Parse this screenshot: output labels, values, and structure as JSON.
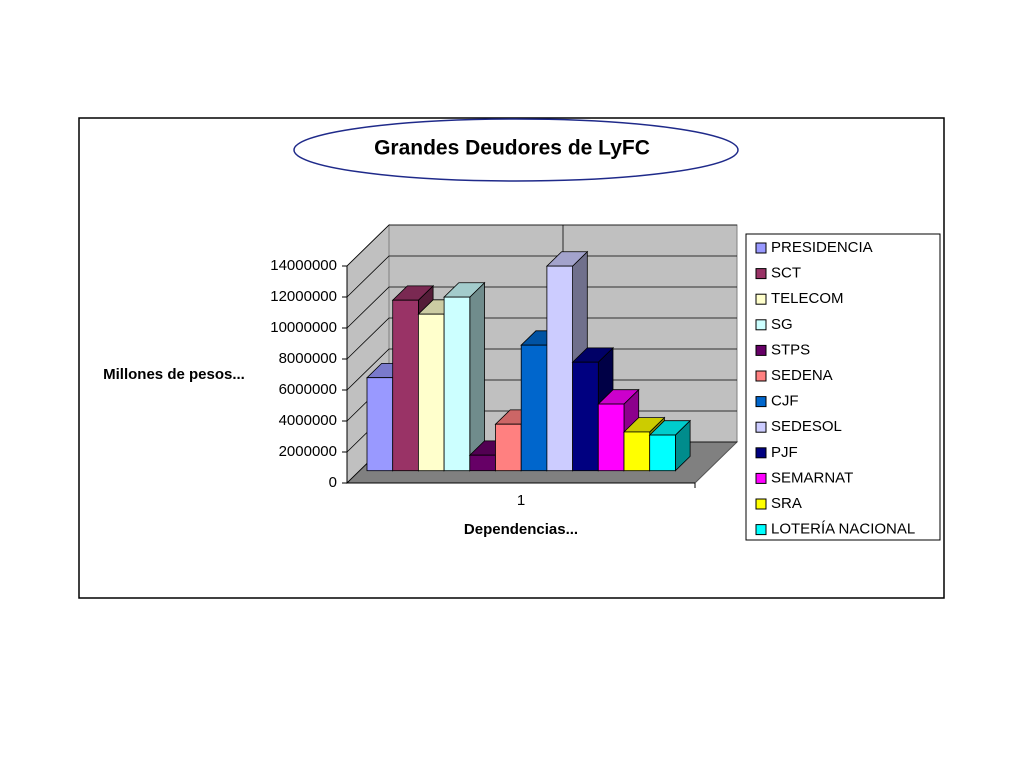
{
  "chart_data": {
    "type": "bar",
    "title": "Grandes Deudores de LyFC",
    "x_label": "Dependencias...",
    "y_label": "Millones de pesos...",
    "categories": [
      "1"
    ],
    "ylim": [
      0,
      14000000
    ],
    "yticks": [
      0,
      2000000,
      4000000,
      6000000,
      8000000,
      10000000,
      12000000,
      14000000
    ],
    "grid": true,
    "legend": "right",
    "series": [
      {
        "name": "PRESIDENCIA",
        "color": "#9999ff",
        "values": [
          6000000
        ]
      },
      {
        "name": "SCT",
        "color": "#993366",
        "values": [
          11000000
        ]
      },
      {
        "name": "TELECOM",
        "color": "#ffffcc",
        "values": [
          10100000
        ]
      },
      {
        "name": "SG",
        "color": "#ccffff",
        "values": [
          11200000
        ]
      },
      {
        "name": "STPS",
        "color": "#660066",
        "values": [
          1000000
        ]
      },
      {
        "name": "SEDENA",
        "color": "#ff8080",
        "values": [
          3000000
        ]
      },
      {
        "name": "CJF",
        "color": "#0066cc",
        "values": [
          8100000
        ]
      },
      {
        "name": "SEDESOL",
        "color": "#ccccff",
        "values": [
          13200000
        ]
      },
      {
        "name": "PJF",
        "color": "#000080",
        "values": [
          7000000
        ]
      },
      {
        "name": "SEMARNAT",
        "color": "#ff00ff",
        "values": [
          4300000
        ]
      },
      {
        "name": "SRA",
        "color": "#ffff00",
        "values": [
          2500000
        ]
      },
      {
        "name": "LOTERÍA NACIONAL",
        "color": "#00ffff",
        "values": [
          2300000
        ]
      }
    ]
  }
}
